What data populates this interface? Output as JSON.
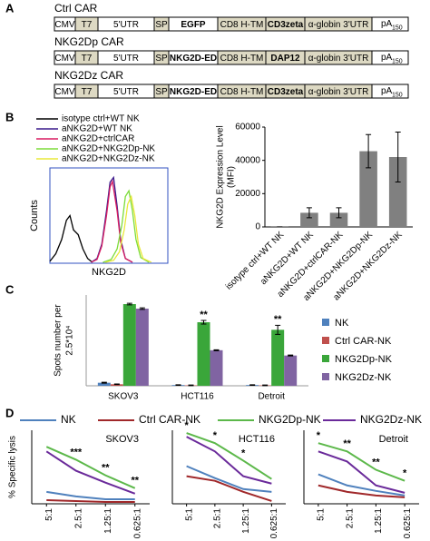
{
  "panel_labels": [
    "A",
    "B",
    "C",
    "D"
  ],
  "constructs": [
    {
      "name": "Ctrl CAR",
      "segments": [
        "CMV",
        "T7",
        "5'UTR",
        "SP",
        "EGFP",
        "CD8 H-TM",
        "CD3zeta",
        "α-globin 3'UTR"
      ],
      "label_colors": [
        "#000",
        "#000",
        "#000",
        "#000",
        "#d0021b",
        "#000",
        "#d0021b",
        "#000"
      ],
      "polya": "pA",
      "polya_sub": "150"
    },
    {
      "name": "NKG2Dp CAR",
      "segments": [
        "CMV",
        "T7",
        "5'UTR",
        "SP",
        "NKG2D-ED",
        "CD8 H-TM",
        "DAP12",
        "α-globin 3'UTR"
      ],
      "label_colors": [
        "#000",
        "#000",
        "#000",
        "#000",
        "#d0021b",
        "#000",
        "#d0021b",
        "#000"
      ],
      "polya": "pA",
      "polya_sub": "150"
    },
    {
      "name": "NKG2Dz CAR",
      "segments": [
        "CMV",
        "T7",
        "5'UTR",
        "SP",
        "NKG2D-ED",
        "CD8 H-TM",
        "CD3zeta",
        "α-globin 3'UTR"
      ],
      "label_colors": [
        "#000",
        "#000",
        "#000",
        "#000",
        "#d0021b",
        "#000",
        "#d0021b",
        "#000"
      ],
      "polya": "pA",
      "polya_sub": "150"
    }
  ],
  "chart_data": [
    {
      "type": "density",
      "xlabel": "NKG2D",
      "ylabel": "Counts",
      "xlim": [
        0,
        100
      ],
      "ylim": [
        0,
        100
      ],
      "legend": true,
      "series": [
        {
          "name": "isotype ctrl+WT NK",
          "color": "#000000",
          "x": [
            0,
            5,
            10,
            14,
            17,
            20,
            24,
            28,
            32,
            36
          ],
          "values": [
            2,
            10,
            25,
            45,
            50,
            35,
            30,
            15,
            5,
            1
          ]
        },
        {
          "name": "aNKG2D+WT NK",
          "color": "#3a1a8c",
          "x": [
            35,
            40,
            44,
            48,
            51,
            54,
            57,
            60,
            64,
            70
          ],
          "values": [
            1,
            5,
            20,
            55,
            85,
            90,
            60,
            25,
            5,
            1
          ]
        },
        {
          "name": "aNKG2D+ctrlCAR",
          "color": "#d81b60",
          "x": [
            35,
            40,
            44,
            48,
            51,
            53,
            57,
            60,
            64,
            70
          ],
          "values": [
            1,
            4,
            18,
            50,
            80,
            86,
            55,
            22,
            5,
            1
          ]
        },
        {
          "name": "aNKG2D+NKG2Dp-NK",
          "color": "#7ddc3a",
          "x": [
            45,
            52,
            57,
            61,
            64,
            67,
            70,
            73,
            77,
            84
          ],
          "values": [
            1,
            4,
            15,
            40,
            70,
            76,
            55,
            25,
            6,
            1
          ]
        },
        {
          "name": "aNKG2D+NKG2Dz-NK",
          "color": "#e8e83a",
          "x": [
            47,
            54,
            59,
            63,
            66,
            69,
            72,
            75,
            79,
            86
          ],
          "values": [
            1,
            3,
            12,
            35,
            62,
            70,
            50,
            20,
            5,
            1
          ]
        }
      ]
    },
    {
      "type": "bar",
      "ylabel": [
        "NKG2D Expression Level",
        "(MFI)"
      ],
      "categories": [
        "isotype ctrl+WT NK",
        "aNKG2D+WT NK",
        "aNKG2D+ctrlCAR-NK",
        "aNKG2D+NKG2Dp-NK",
        "aNKG2D+NKG2Dz-NK"
      ],
      "values": [
        100,
        8500,
        8500,
        45500,
        42000
      ],
      "errors": [
        0,
        3000,
        3000,
        10000,
        15000
      ],
      "color": "#808080",
      "ylim": [
        0,
        60000
      ],
      "yticks": [
        0,
        20000,
        40000,
        60000
      ]
    },
    {
      "type": "grouped_bar",
      "ylabel": [
        "Spots number per",
        "2.5*10⁴"
      ],
      "categories": [
        "SKOV3",
        "HCT116",
        "Detroit"
      ],
      "ylim": [
        0,
        600
      ],
      "legend": true,
      "series": [
        {
          "name": "NK",
          "color": "#4f81bd",
          "values": [
            20,
            5,
            5
          ],
          "errors": [
            3,
            2,
            2
          ]
        },
        {
          "name": "Ctrl CAR-NK",
          "color": "#c0504d",
          "values": [
            10,
            3,
            3
          ],
          "errors": [
            2,
            2,
            2
          ]
        },
        {
          "name": "NKG2Dp-NK",
          "color": "#3aa63a",
          "values": [
            540,
            420,
            370
          ],
          "errors": [
            5,
            12,
            30
          ],
          "annotations": [
            null,
            "**",
            "**"
          ]
        },
        {
          "name": "NKG2Dz-NK",
          "color": "#8064a2",
          "values": [
            510,
            235,
            200
          ],
          "errors": [
            5,
            3,
            3
          ]
        }
      ]
    },
    {
      "type": "line",
      "title": "SKOV3",
      "ylabel": "% Specific lysis",
      "categories": [
        "5:1",
        "2.5:1",
        "1.25:1",
        "0.625:1"
      ],
      "ylim": [
        0,
        80
      ],
      "legend": true,
      "series": [
        {
          "name": "NK",
          "color": "#4f81bd",
          "values": [
            13,
            8,
            5,
            5
          ]
        },
        {
          "name": "Ctrl CAR-NK",
          "color": "#a0282a",
          "values": [
            4,
            3,
            2,
            2
          ]
        },
        {
          "name": "NKG2Dp-NK",
          "color": "#5cb84a",
          "values": [
            62,
            48,
            31,
            17
          ],
          "annotations": [
            null,
            "***",
            "**",
            "**"
          ]
        },
        {
          "name": "NKG2Dz-NK",
          "color": "#6a2a9a",
          "values": [
            57,
            36,
            23,
            11
          ]
        }
      ]
    },
    {
      "type": "line",
      "title": "HCT116",
      "categories": [
        "5:1",
        "2.5:1",
        "1.25:1",
        "0.625:1"
      ],
      "ylim": [
        0,
        80
      ],
      "series": [
        {
          "color": "#4f81bd",
          "values": [
            41,
            28,
            16,
            13
          ]
        },
        {
          "color": "#a0282a",
          "values": [
            30,
            25,
            13,
            3
          ]
        },
        {
          "color": "#5cb84a",
          "values": [
            77,
            66,
            47,
            27
          ],
          "annotations": [
            "*",
            "*",
            "*",
            null
          ]
        },
        {
          "color": "#6a2a9a",
          "values": [
            73,
            57,
            30,
            22
          ]
        }
      ]
    },
    {
      "type": "line",
      "title": "Detroit",
      "categories": [
        "5:1",
        "2.5:1",
        "1.25:1",
        "0.625:1"
      ],
      "ylim": [
        0,
        80
      ],
      "series": [
        {
          "color": "#4f81bd",
          "values": [
            32,
            20,
            14,
            9
          ]
        },
        {
          "color": "#a0282a",
          "values": [
            20,
            13,
            9,
            7
          ]
        },
        {
          "color": "#5cb84a",
          "values": [
            66,
            57,
            37,
            25
          ],
          "annotations": [
            "*",
            "**",
            "**",
            "*"
          ]
        },
        {
          "color": "#6a2a9a",
          "values": [
            57,
            46,
            20,
            12
          ]
        }
      ]
    }
  ]
}
